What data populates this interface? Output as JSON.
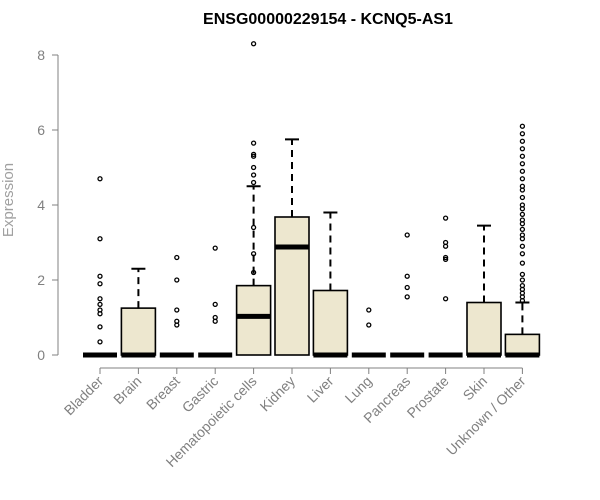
{
  "chart_data": {
    "type": "box",
    "title": "ENSG00000229154 - KCNQ5-AS1",
    "ylabel": "Expression",
    "xlabel": "",
    "ylim": [
      0,
      8
    ],
    "yticks": [
      0,
      2,
      4,
      6,
      8
    ],
    "grid": false,
    "legend": "none",
    "colors": {
      "box_fill": "#ede7cf",
      "box_stroke": "#000000",
      "axis": "#808080",
      "title": "#000000"
    },
    "categories": [
      "Bladder",
      "Brain",
      "Breast",
      "Gastric",
      "Hematopoietic cells",
      "Kidney",
      "Liver",
      "Lung",
      "Pancreas",
      "Prostate",
      "Skin",
      "Unknown / Other"
    ],
    "boxes": [
      {
        "category": "Bladder",
        "min": 0,
        "q1": 0,
        "median": 0,
        "q3": 0,
        "max": 0,
        "outliers": [
          4.7,
          3.1,
          2.1,
          1.9,
          1.5,
          1.35,
          1.2,
          1.1,
          0.75,
          0.35
        ]
      },
      {
        "category": "Brain",
        "min": 0,
        "q1": 0,
        "median": 0,
        "q3": 1.25,
        "max": 2.3,
        "outliers": []
      },
      {
        "category": "Breast",
        "min": 0,
        "q1": 0,
        "median": 0,
        "q3": 0,
        "max": 0,
        "outliers": [
          2.6,
          2.0,
          1.2,
          0.9,
          0.8
        ]
      },
      {
        "category": "Gastric",
        "min": 0,
        "q1": 0,
        "median": 0,
        "q3": 0,
        "max": 0,
        "outliers": [
          2.85,
          1.35,
          1.0,
          0.9
        ]
      },
      {
        "category": "Hematopoietic cells",
        "min": 0,
        "q1": 0,
        "median": 1.03,
        "q3": 1.85,
        "max": 4.5,
        "outliers": [
          8.3,
          5.65,
          5.35,
          5.3,
          5.0,
          4.8,
          4.6,
          3.4,
          2.7,
          2.2
        ]
      },
      {
        "category": "Kidney",
        "min": 0,
        "q1": 0,
        "median": 2.88,
        "q3": 3.68,
        "max": 5.75,
        "outliers": []
      },
      {
        "category": "Liver",
        "min": 0,
        "q1": 0,
        "median": 0,
        "q3": 1.72,
        "max": 3.8,
        "outliers": []
      },
      {
        "category": "Lung",
        "min": 0,
        "q1": 0,
        "median": 0,
        "q3": 0,
        "max": 0,
        "outliers": [
          1.2,
          0.8
        ]
      },
      {
        "category": "Pancreas",
        "min": 0,
        "q1": 0,
        "median": 0,
        "q3": 0,
        "max": 0,
        "outliers": [
          3.2,
          2.1,
          1.8,
          1.55
        ]
      },
      {
        "category": "Prostate",
        "min": 0,
        "q1": 0,
        "median": 0,
        "q3": 0,
        "max": 0,
        "outliers": [
          3.65,
          3.0,
          2.9,
          2.6,
          2.55,
          1.5
        ]
      },
      {
        "category": "Skin",
        "min": 0,
        "q1": 0,
        "median": 0,
        "q3": 1.4,
        "max": 3.45,
        "outliers": []
      },
      {
        "category": "Unknown / Other",
        "min": 0,
        "q1": 0,
        "median": 0,
        "q3": 0.55,
        "max": 1.4,
        "outliers": [
          6.1,
          5.9,
          5.7,
          5.5,
          5.3,
          5.1,
          4.9,
          4.7,
          4.5,
          4.4,
          4.2,
          4.0,
          3.9,
          3.75,
          3.6,
          3.5,
          3.35,
          3.2,
          3.1,
          2.9,
          2.7,
          2.45,
          2.15,
          2.0,
          1.85,
          1.75,
          1.65,
          1.55,
          1.45
        ]
      }
    ]
  }
}
